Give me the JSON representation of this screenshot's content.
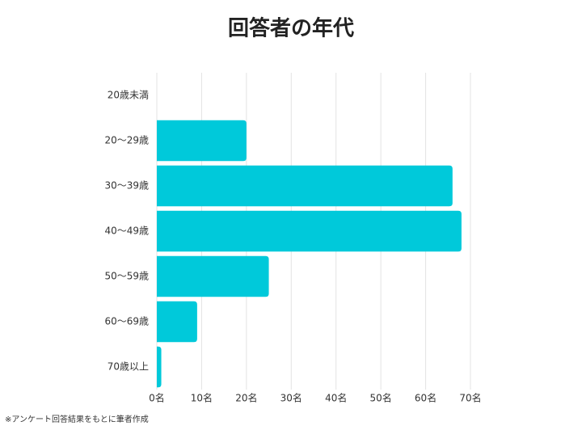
{
  "chart_data": {
    "type": "bar",
    "orientation": "horizontal",
    "title": "回答者の年代",
    "categories": [
      "20歳未満",
      "20～29歳",
      "30～39歳",
      "40～49歳",
      "50～59歳",
      "60～69歳",
      "70歳以上"
    ],
    "values": [
      0,
      20,
      66,
      68,
      25,
      9,
      1
    ],
    "color": "#00c9da",
    "xlim": [
      0,
      70
    ],
    "xticks": [
      {
        "value": 0,
        "label": "0名"
      },
      {
        "value": 10,
        "label": "10名"
      },
      {
        "value": 20,
        "label": "20名"
      },
      {
        "value": 30,
        "label": "30名"
      },
      {
        "value": 40,
        "label": "40名"
      },
      {
        "value": 50,
        "label": "50名"
      },
      {
        "value": 60,
        "label": "60名"
      },
      {
        "value": 70,
        "label": "70名"
      }
    ],
    "grid": true,
    "note": "※アンケート回答結果をもとに筆者作成"
  }
}
